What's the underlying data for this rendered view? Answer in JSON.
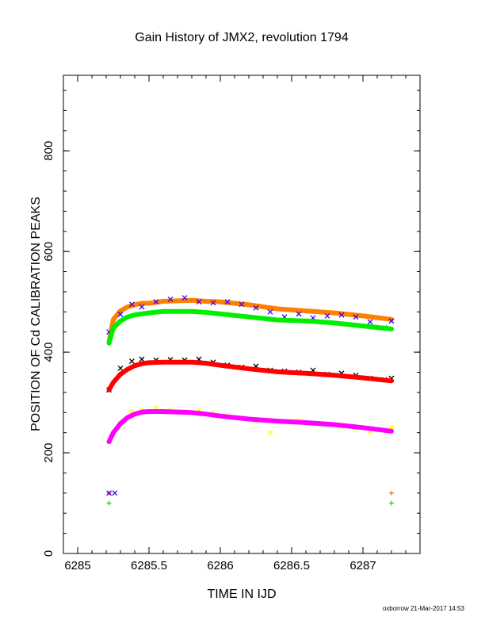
{
  "chart_data": {
    "type": "scatter",
    "title": "Gain History of JMX2, revolution 1794",
    "xlabel": "TIME IN IJD",
    "ylabel": "POSITION OF Cd CALIBRATION PEAKS",
    "xlim": [
      6284.9,
      6287.4
    ],
    "ylim": [
      0,
      950
    ],
    "xticks": [
      "6285",
      "6285.5",
      "6286",
      "6286.5",
      "6287"
    ],
    "xtick_values": [
      6285,
      6285.5,
      6286,
      6286.5,
      6287
    ],
    "yticks": [
      "0",
      "200",
      "400",
      "600",
      "800"
    ],
    "ytick_values": [
      0,
      200,
      400,
      600,
      800
    ],
    "series": [
      {
        "color": "#ff8000",
        "marker": "line",
        "x": [
          6285.22,
          6285.25,
          6285.3,
          6285.35,
          6285.4,
          6285.45,
          6285.5,
          6285.6,
          6285.7,
          6285.8,
          6285.9,
          6286.0,
          6286.2,
          6286.4,
          6286.6,
          6286.8,
          6287.0,
          6287.2
        ],
        "y": [
          420,
          465,
          482,
          490,
          494,
          497,
          497,
          501,
          502,
          503,
          501,
          500,
          494,
          486,
          482,
          478,
          472,
          465
        ]
      },
      {
        "color": "#4000ff",
        "marker": "x",
        "x": [
          6285.22,
          6285.3,
          6285.38,
          6285.45,
          6285.55,
          6285.65,
          6285.75,
          6285.85,
          6285.95,
          6286.05,
          6286.15,
          6286.25,
          6286.35,
          6286.45,
          6286.55,
          6286.65,
          6286.75,
          6286.85,
          6286.95,
          6287.05,
          6287.15,
          6287.2
        ],
        "y": [
          440,
          475,
          495,
          490,
          500,
          505,
          508,
          500,
          498,
          500,
          495,
          488,
          480,
          470,
          476,
          468,
          472,
          474,
          470,
          460,
          448,
          462
        ]
      },
      {
        "color": "#00ee00",
        "marker": "line",
        "x": [
          6285.22,
          6285.25,
          6285.3,
          6285.35,
          6285.4,
          6285.45,
          6285.5,
          6285.6,
          6285.7,
          6285.8,
          6285.9,
          6286.0,
          6286.2,
          6286.4,
          6286.6,
          6286.8,
          6287.0,
          6287.2
        ],
        "y": [
          418,
          448,
          462,
          470,
          474,
          476,
          478,
          481,
          481,
          481,
          479,
          476,
          470,
          464,
          462,
          458,
          452,
          446
        ]
      },
      {
        "color": "#000000",
        "marker": "x",
        "x": [
          6285.22,
          6285.3,
          6285.38,
          6285.45,
          6285.55,
          6285.65,
          6285.75,
          6285.85,
          6285.95,
          6286.05,
          6286.15,
          6286.25,
          6286.35,
          6286.45,
          6286.55,
          6286.65,
          6286.75,
          6286.85,
          6286.95,
          6287.05,
          6287.15,
          6287.2
        ],
        "y": [
          325,
          368,
          382,
          386,
          384,
          385,
          384,
          386,
          380,
          374,
          370,
          372,
          364,
          362,
          360,
          364,
          356,
          358,
          354,
          348,
          345,
          348
        ]
      },
      {
        "color": "#ff0000",
        "marker": "line",
        "x": [
          6285.22,
          6285.25,
          6285.3,
          6285.35,
          6285.4,
          6285.45,
          6285.5,
          6285.6,
          6285.7,
          6285.8,
          6285.9,
          6286.0,
          6286.2,
          6286.4,
          6286.6,
          6286.8,
          6287.0,
          6287.2
        ],
        "y": [
          325,
          340,
          356,
          366,
          373,
          377,
          379,
          380,
          380,
          380,
          378,
          374,
          367,
          361,
          358,
          354,
          349,
          343
        ]
      },
      {
        "color": "#ffff00",
        "marker": "x",
        "x": [
          6285.22,
          6285.3,
          6285.38,
          6285.45,
          6285.55,
          6285.65,
          6285.75,
          6285.85,
          6285.95,
          6286.05,
          6286.15,
          6286.25,
          6286.35,
          6286.45,
          6286.55,
          6286.65,
          6286.75,
          6286.85,
          6286.95,
          6287.05,
          6287.15,
          6287.2
        ],
        "y": [
          224,
          258,
          282,
          286,
          290,
          284,
          282,
          285,
          280,
          274,
          270,
          262,
          240,
          262,
          264,
          258,
          256,
          252,
          248,
          242,
          245,
          250
        ]
      },
      {
        "color": "#ff00ff",
        "marker": "line",
        "x": [
          6285.22,
          6285.25,
          6285.3,
          6285.35,
          6285.4,
          6285.45,
          6285.5,
          6285.6,
          6285.7,
          6285.8,
          6285.9,
          6286.0,
          6286.2,
          6286.4,
          6286.6,
          6286.8,
          6287.0,
          6287.2
        ],
        "y": [
          222,
          240,
          258,
          270,
          277,
          281,
          282,
          282,
          281,
          280,
          277,
          273,
          267,
          263,
          260,
          256,
          250,
          243
        ]
      },
      {
        "color": "#ff8000",
        "marker": "plus",
        "x": [
          6285.22,
          6287.2
        ],
        "y": [
          120,
          120
        ]
      },
      {
        "color": "#4000ff",
        "marker": "x",
        "x": [
          6285.22,
          6285.26
        ],
        "y": [
          120,
          120
        ]
      },
      {
        "color": "#00ee00",
        "marker": "plus",
        "x": [
          6285.22,
          6287.2
        ],
        "y": [
          100,
          100
        ]
      }
    ]
  },
  "footer": "oxborrow 21-Mar-2017 14:53"
}
